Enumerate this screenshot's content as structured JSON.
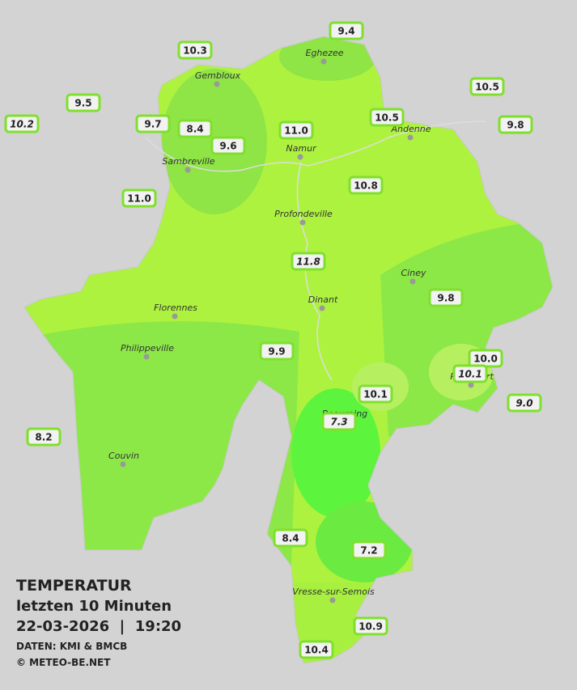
{
  "header": {
    "title": "TEMPERATUR",
    "subtitle": "letzten 10 Minuten",
    "datetime": "22-03-2026  |  19:20",
    "source": "DATEN: KMI & BMCB",
    "copyright": "© METEO-BE.NET"
  },
  "towns": [
    "Gembloux",
    "Eghezee",
    "Andenne",
    "Namur",
    "Sambreville",
    "Profondeville",
    "Ciney",
    "Florennes",
    "Dinant",
    "Philippeville",
    "Rochefort",
    "Beauraing",
    "Couvin",
    "Vresse-sur-Semois"
  ],
  "stations": [
    {
      "label": "10.3",
      "italic": false
    },
    {
      "label": "9.4",
      "italic": false
    },
    {
      "label": "10.5",
      "italic": false
    },
    {
      "label": "9.5",
      "italic": false
    },
    {
      "label": "10.2",
      "italic": true
    },
    {
      "label": "9.7",
      "italic": false
    },
    {
      "label": "8.4",
      "italic": false
    },
    {
      "label": "9.6",
      "italic": false
    },
    {
      "label": "11.0",
      "italic": false
    },
    {
      "label": "10.5",
      "italic": false
    },
    {
      "label": "9.8",
      "italic": false
    },
    {
      "label": "10.8",
      "italic": false
    },
    {
      "label": "11.0",
      "italic": false
    },
    {
      "label": "11.8",
      "italic": true
    },
    {
      "label": "9.8",
      "italic": false
    },
    {
      "label": "9.9",
      "italic": false
    },
    {
      "label": "10.0",
      "italic": false
    },
    {
      "label": "10.1",
      "italic": true
    },
    {
      "label": "10.1",
      "italic": false
    },
    {
      "label": "9.0",
      "italic": true
    },
    {
      "label": "7.3",
      "italic": true
    },
    {
      "label": "8.2",
      "italic": false
    },
    {
      "label": "8.4",
      "italic": false
    },
    {
      "label": "7.2",
      "italic": false
    },
    {
      "label": "10.9",
      "italic": false
    },
    {
      "label": "10.4",
      "italic": false
    }
  ]
}
